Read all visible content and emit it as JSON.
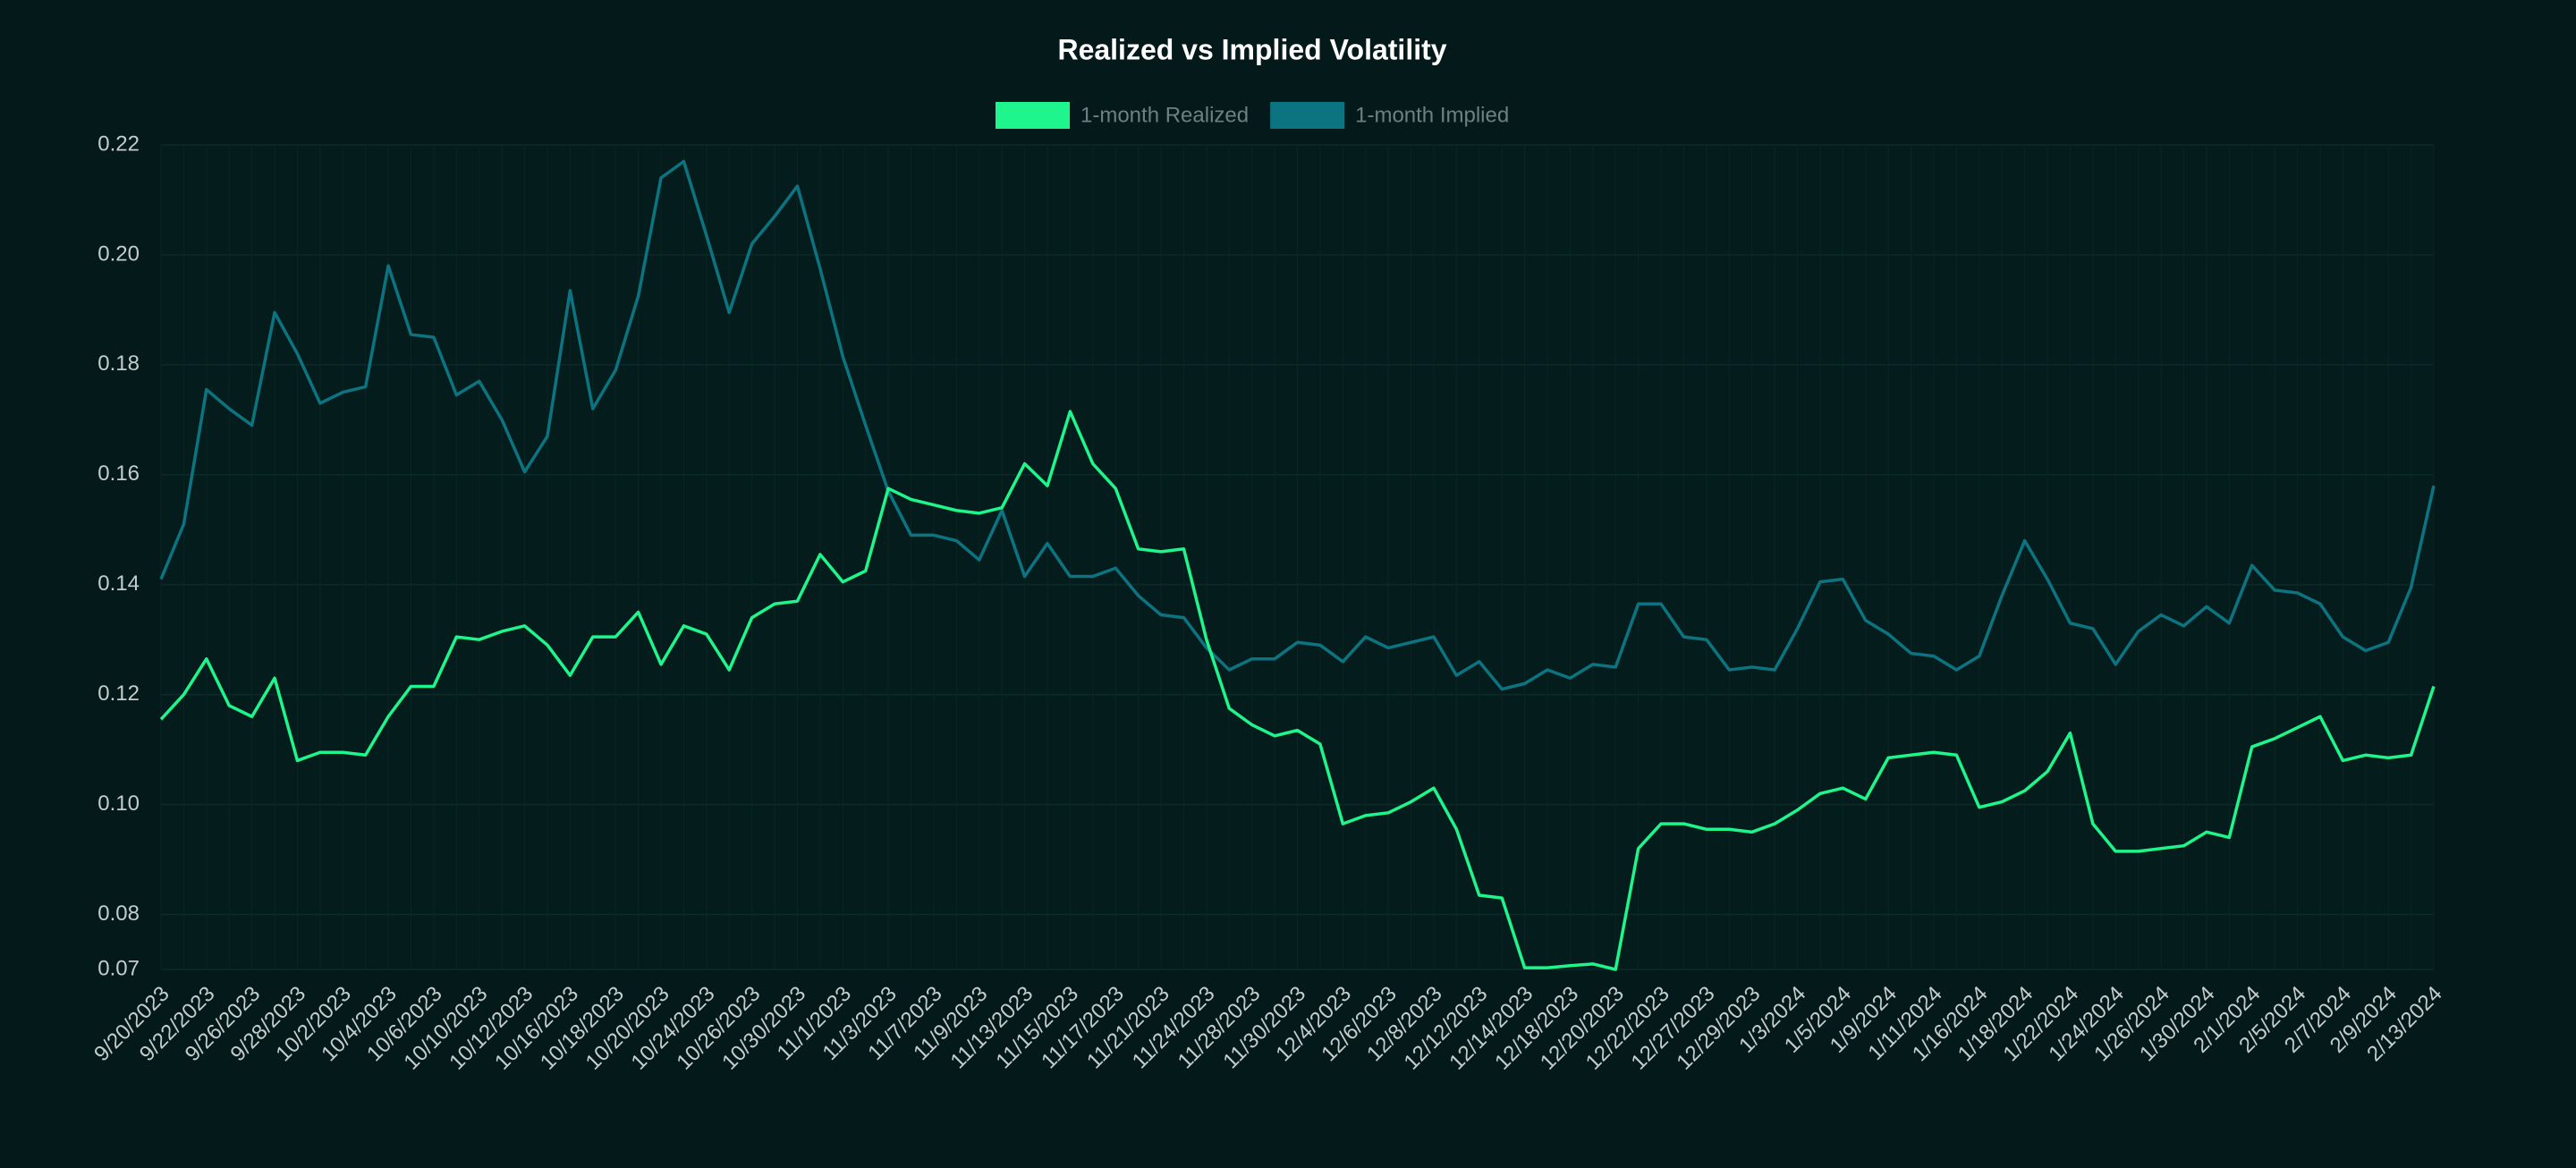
{
  "chart_data": {
    "type": "line",
    "title": "Realized vs Implied Volatility",
    "categories": [
      "9/20/2023",
      null,
      "9/22/2023",
      null,
      "9/26/2023",
      null,
      "9/28/2023",
      null,
      "10/2/2023",
      null,
      "10/4/2023",
      null,
      "10/6/2023",
      null,
      "10/10/2023",
      null,
      "10/12/2023",
      null,
      "10/16/2023",
      null,
      "10/18/2023",
      null,
      "10/20/2023",
      null,
      "10/24/2023",
      null,
      "10/26/2023",
      null,
      "10/30/2023",
      null,
      "11/1/2023",
      null,
      "11/3/2023",
      null,
      "11/7/2023",
      null,
      "11/9/2023",
      null,
      "11/13/2023",
      null,
      "11/15/2023",
      null,
      "11/17/2023",
      null,
      "11/21/2023",
      null,
      "11/24/2023",
      null,
      "11/28/2023",
      null,
      "11/30/2023",
      null,
      "12/4/2023",
      null,
      "12/6/2023",
      null,
      "12/8/2023",
      null,
      "12/12/2023",
      null,
      "12/14/2023",
      null,
      "12/18/2023",
      null,
      "12/20/2023",
      null,
      "12/22/2023",
      null,
      "12/27/2023",
      null,
      "12/29/2023",
      null,
      "1/3/2024",
      null,
      "1/5/2024",
      null,
      "1/9/2024",
      null,
      "1/11/2024",
      null,
      "1/16/2024",
      null,
      "1/18/2024",
      null,
      "1/22/2024",
      null,
      "1/24/2024",
      null,
      "1/26/2024",
      null,
      "1/30/2024",
      null,
      "2/1/2024",
      null,
      "2/5/2024",
      null,
      "2/7/2024",
      null,
      "2/9/2024",
      null,
      "2/13/2024"
    ],
    "series": [
      {
        "name": "1-month Realized",
        "color": "#1ef58c",
        "values": [
          0.1155,
          0.12,
          0.1265,
          0.118,
          0.116,
          0.123,
          0.108,
          0.1095,
          0.1095,
          0.109,
          0.116,
          0.1215,
          0.1215,
          0.1305,
          0.13,
          0.1315,
          0.1325,
          0.129,
          0.1235,
          0.1305,
          0.1305,
          0.135,
          0.1255,
          0.1325,
          0.131,
          0.1245,
          0.134,
          0.1365,
          0.137,
          0.1455,
          0.1405,
          0.1425,
          0.1575,
          0.1555,
          0.1545,
          0.1535,
          0.153,
          0.154,
          0.162,
          0.158,
          0.1715,
          0.162,
          0.1575,
          0.1465,
          0.146,
          0.1465,
          0.13,
          0.1175,
          0.1145,
          0.1125,
          0.1135,
          0.111,
          0.0965,
          0.098,
          0.0985,
          0.1005,
          0.103,
          0.0955,
          0.0835,
          0.083,
          0.0703,
          0.0703,
          0.0707,
          0.071,
          0.07,
          0.092,
          0.0965,
          0.0965,
          0.0955,
          0.0955,
          0.095,
          0.0965,
          0.099,
          0.102,
          0.103,
          0.101,
          0.1085,
          0.109,
          0.1095,
          0.109,
          0.0995,
          0.1005,
          0.1025,
          0.106,
          0.113,
          0.0965,
          0.0915,
          0.0915,
          0.092,
          0.0925,
          0.095,
          0.094,
          0.1105,
          0.112,
          0.114,
          0.116,
          0.108,
          0.109,
          0.1085,
          0.109,
          0.1215
        ]
      },
      {
        "name": "1-month Implied",
        "color": "#0b7480",
        "values": [
          0.141,
          0.151,
          0.1755,
          0.172,
          0.169,
          0.1895,
          0.182,
          0.173,
          0.175,
          0.176,
          0.198,
          0.1855,
          0.185,
          0.1745,
          0.177,
          0.17,
          0.1605,
          0.167,
          0.1935,
          0.172,
          0.179,
          0.1925,
          0.214,
          0.217,
          0.2035,
          0.1895,
          0.202,
          0.207,
          0.2125,
          0.1975,
          0.1815,
          0.169,
          0.157,
          0.149,
          0.149,
          0.148,
          0.1445,
          0.1535,
          0.1415,
          0.1475,
          0.1415,
          0.1415,
          0.143,
          0.138,
          0.1345,
          0.134,
          0.1285,
          0.1245,
          0.1265,
          0.1265,
          0.1295,
          0.129,
          0.126,
          0.1305,
          0.1285,
          0.1295,
          0.1305,
          0.1235,
          0.126,
          0.121,
          0.122,
          0.1245,
          0.123,
          0.1255,
          0.125,
          0.1365,
          0.1365,
          0.1305,
          0.13,
          0.1245,
          0.125,
          0.1245,
          0.132,
          0.1405,
          0.141,
          0.1335,
          0.131,
          0.1275,
          0.127,
          0.1245,
          0.127,
          0.138,
          0.148,
          0.141,
          0.133,
          0.132,
          0.1255,
          0.1315,
          0.1345,
          0.1325,
          0.136,
          0.133,
          0.1435,
          0.139,
          0.1385,
          0.1365,
          0.1305,
          0.128,
          0.1295,
          0.1395,
          0.158
        ]
      }
    ],
    "ylim": [
      0.07,
      0.22
    ],
    "yticks": [
      0.07,
      0.08,
      {
        "value": 0.1,
        "label": "0.10"
      },
      0.12,
      0.14,
      0.16,
      0.18,
      {
        "value": 0.2,
        "label": "0.20"
      },
      0.22
    ],
    "grid": true
  }
}
